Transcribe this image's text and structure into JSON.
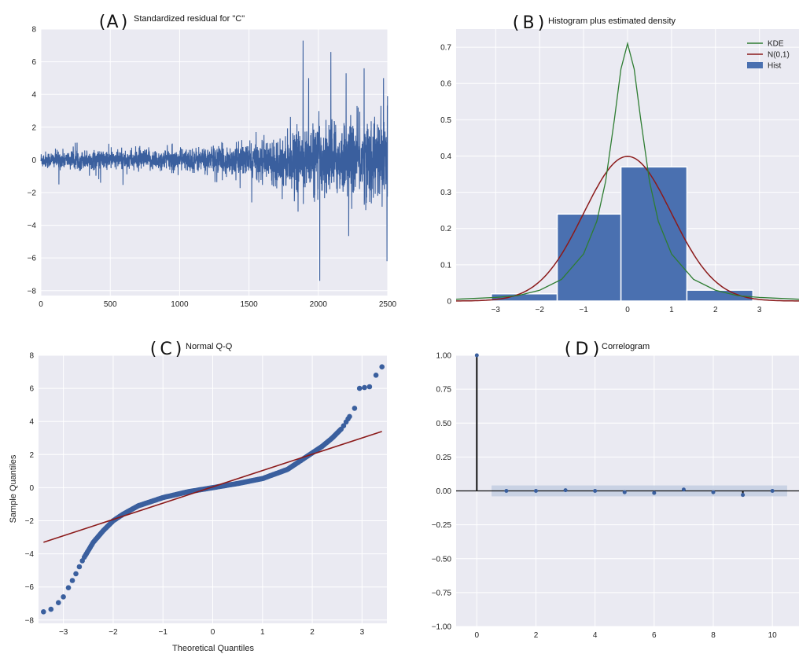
{
  "colors": {
    "plot_bg": "#eaeaf2",
    "grid": "#ffffff",
    "series_blue": "#3a5f9e",
    "hist_fill": "#4a70b0",
    "kde_green": "#2e7d32",
    "normal_red": "#8b1a1a",
    "confidence_band": "#c0cce0",
    "stem_black": "#111111"
  },
  "chart_data": [
    {
      "id": "A",
      "type": "line",
      "panel_label": "A",
      "title": "Standardized residual for \"C\"",
      "xlabel": "",
      "ylabel": "",
      "xlim": [
        0,
        2500
      ],
      "ylim": [
        -8.3,
        8
      ],
      "xticks": [
        0,
        500,
        1000,
        1500,
        2000,
        2500
      ],
      "yticks": [
        -8,
        -6,
        -4,
        -2,
        0,
        2,
        4,
        6,
        8
      ],
      "n_points": 2500,
      "volatility_envelope": {
        "x": [
          0,
          500,
          1000,
          1400,
          1600,
          1800,
          2000,
          2200,
          2500
        ],
        "amplitude": [
          0.45,
          0.55,
          0.6,
          0.8,
          1.0,
          1.4,
          1.9,
          2.0,
          2.4
        ]
      },
      "spikes": [
        {
          "x": 130,
          "y": -1.5
        },
        {
          "x": 430,
          "y": -1.4
        },
        {
          "x": 1520,
          "y": -2.6
        },
        {
          "x": 1740,
          "y": -2.4
        },
        {
          "x": 1890,
          "y": 7.3
        },
        {
          "x": 1930,
          "y": 5.0
        },
        {
          "x": 2010,
          "y": -7.4
        },
        {
          "x": 2090,
          "y": 6.6
        },
        {
          "x": 2200,
          "y": 5.3
        },
        {
          "x": 2330,
          "y": 5.6
        },
        {
          "x": 2470,
          "y": 5.0
        },
        {
          "x": 2495,
          "y": -6.2
        },
        {
          "x": 2505,
          "y": 3.9
        }
      ],
      "grid": true,
      "legend": "none"
    },
    {
      "id": "B",
      "type": "bar",
      "panel_label": "B",
      "title": "Histogram plus estimated density",
      "xlabel": "",
      "ylabel": "",
      "xlim": [
        -3.9,
        3.9
      ],
      "ylim": [
        0,
        0.75
      ],
      "xticks": [
        -3,
        -2,
        -1,
        0,
        1,
        2,
        3
      ],
      "yticks": [
        0.0,
        0.1,
        0.2,
        0.3,
        0.4,
        0.5,
        0.6,
        0.7
      ],
      "bins": [
        {
          "x0": -3.1,
          "x1": -1.6,
          "value": 0.02
        },
        {
          "x0": -1.6,
          "x1": -0.15,
          "value": 0.24
        },
        {
          "x0": -0.15,
          "x1": 1.35,
          "value": 0.37
        },
        {
          "x0": 1.35,
          "x1": 2.85,
          "value": 0.03
        }
      ],
      "kde": {
        "x": [
          -3.9,
          -3.0,
          -2.5,
          -2.0,
          -1.5,
          -1.0,
          -0.7,
          -0.5,
          -0.3,
          -0.15,
          0.0,
          0.15,
          0.3,
          0.5,
          0.7,
          1.0,
          1.5,
          2.0,
          2.5,
          3.0,
          3.9
        ],
        "y": [
          0.005,
          0.01,
          0.015,
          0.03,
          0.06,
          0.13,
          0.22,
          0.33,
          0.5,
          0.64,
          0.71,
          0.64,
          0.5,
          0.33,
          0.22,
          0.13,
          0.06,
          0.03,
          0.015,
          0.01,
          0.005
        ]
      },
      "normal_mean": 0,
      "normal_sd": 1,
      "series": [
        {
          "name": "KDE",
          "kind": "line",
          "color": "#2e7d32"
        },
        {
          "name": "N(0,1)",
          "kind": "line",
          "color": "#8b1a1a"
        },
        {
          "name": "Hist",
          "kind": "patch",
          "color": "#4a70b0"
        }
      ],
      "grid": true,
      "legend": "top-right"
    },
    {
      "id": "C",
      "type": "scatter",
      "panel_label": "C",
      "title": "Normal Q-Q",
      "xlabel": "Theoretical Quantiles",
      "ylabel": "Sample Quantiles",
      "xlim": [
        -3.5,
        3.5
      ],
      "ylim": [
        -8.2,
        8
      ],
      "xticks": [
        -3,
        -2,
        -1,
        0,
        1,
        2,
        3
      ],
      "yticks": [
        -8,
        -6,
        -4,
        -2,
        0,
        2,
        4,
        6,
        8
      ],
      "reference_line": {
        "x": [
          -3.4,
          3.4
        ],
        "y": [
          -3.3,
          3.4
        ]
      },
      "curve": {
        "x": [
          -3.4,
          -3.2,
          -3.0,
          -2.8,
          -2.6,
          -2.4,
          -2.2,
          -2.0,
          -1.8,
          -1.5,
          -1.0,
          -0.5,
          0.0,
          0.5,
          1.0,
          1.5,
          1.8,
          2.0,
          2.2,
          2.4,
          2.6,
          2.75
        ],
        "y": [
          -7.5,
          -7.3,
          -6.6,
          -5.5,
          -4.3,
          -3.3,
          -2.6,
          -2.0,
          -1.6,
          -1.1,
          -0.6,
          -0.25,
          0.0,
          0.25,
          0.55,
          1.1,
          1.7,
          2.1,
          2.5,
          3.0,
          3.6,
          4.3
        ]
      },
      "outliers": [
        {
          "x": 2.85,
          "y": 4.8
        },
        {
          "x": 2.95,
          "y": 6.0
        },
        {
          "x": 3.05,
          "y": 6.05
        },
        {
          "x": 3.15,
          "y": 6.1
        },
        {
          "x": 3.28,
          "y": 6.8
        },
        {
          "x": 3.4,
          "y": 7.3
        }
      ],
      "grid": true,
      "legend": "none"
    },
    {
      "id": "D",
      "type": "scatter",
      "panel_label": "D",
      "title": "Correlogram",
      "xlabel": "",
      "ylabel": "",
      "xlim": [
        -0.7,
        10.9
      ],
      "ylim": [
        -1.0,
        1.0
      ],
      "xticks": [
        0,
        2,
        4,
        6,
        8,
        10
      ],
      "yticks": [
        -1.0,
        -0.75,
        -0.5,
        -0.25,
        0.0,
        0.25,
        0.5,
        0.75,
        1.0
      ],
      "ytick_labels": [
        "-1.00",
        "-0.75",
        "-0.50",
        "-0.25",
        "0.00",
        "0.25",
        "0.50",
        "0.75",
        "1.00"
      ],
      "lags": [
        0,
        1,
        2,
        3,
        4,
        5,
        6,
        7,
        8,
        9,
        10
      ],
      "acf": [
        1.0,
        0.0,
        0.0,
        0.005,
        0.0,
        -0.01,
        -0.015,
        0.01,
        -0.01,
        -0.03,
        0.0
      ],
      "confidence_band": [
        -0.04,
        0.04
      ],
      "grid": true,
      "legend": "none"
    }
  ]
}
